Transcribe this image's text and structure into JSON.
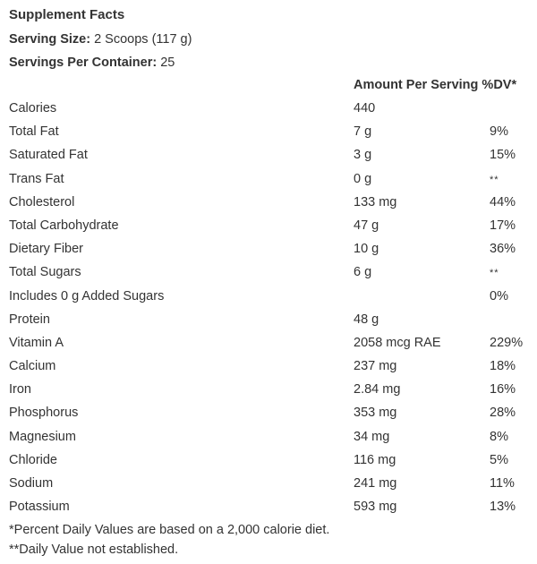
{
  "title": "Supplement Facts",
  "serving_size": {
    "label": "Serving Size:",
    "value": "2 Scoops (117 g)"
  },
  "servings_per_container": {
    "label": "Servings Per Container:",
    "value": "25"
  },
  "header": {
    "amount_label": "Amount Per Serving",
    "dv_label": "%DV*"
  },
  "rows": [
    {
      "name": "Calories",
      "amount": "440",
      "dv": ""
    },
    {
      "name": "Total Fat",
      "amount": "7 g",
      "dv": "9%"
    },
    {
      "name": "Saturated Fat",
      "amount": "3 g",
      "dv": "15%"
    },
    {
      "name": "Trans Fat",
      "amount": "0 g",
      "dv": "**"
    },
    {
      "name": "Cholesterol",
      "amount": "133 mg",
      "dv": "44%"
    },
    {
      "name": "Total Carbohydrate",
      "amount": "47 g",
      "dv": "17%"
    },
    {
      "name": "Dietary Fiber",
      "amount": "10 g",
      "dv": "36%"
    },
    {
      "name": "Total Sugars",
      "amount": "6 g",
      "dv": "**"
    },
    {
      "name": "Includes 0 g Added Sugars",
      "amount": "",
      "dv": "0%"
    },
    {
      "name": "Protein",
      "amount": "48 g",
      "dv": ""
    },
    {
      "name": "Vitamin A",
      "amount": "2058 mcg RAE",
      "dv": "229%"
    },
    {
      "name": "Calcium",
      "amount": "237 mg",
      "dv": "18%"
    },
    {
      "name": "Iron",
      "amount": "2.84 mg",
      "dv": "16%"
    },
    {
      "name": "Phosphorus",
      "amount": "353 mg",
      "dv": "28%"
    },
    {
      "name": "Magnesium",
      "amount": "34 mg",
      "dv": "8%"
    },
    {
      "name": "Chloride",
      "amount": "116 mg",
      "dv": "5%"
    },
    {
      "name": "Sodium",
      "amount": "241 mg",
      "dv": "11%"
    },
    {
      "name": "Potassium",
      "amount": "593 mg",
      "dv": "13%"
    }
  ],
  "footnotes": [
    "*Percent Daily Values are based on a 2,000 calorie diet.",
    "**Daily Value not established."
  ]
}
